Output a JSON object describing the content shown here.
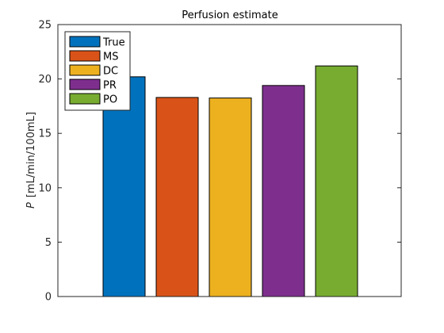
{
  "chart_data": {
    "type": "bar",
    "title": "Perfusion estimate",
    "xlabel": "",
    "ylabel_symbol": "P",
    "ylabel_units": "[mL/min/100mL]",
    "ylim": [
      0,
      25
    ],
    "yticks": [
      0,
      5,
      10,
      15,
      20,
      25
    ],
    "grid": false,
    "legend_location": "top-left",
    "series": [
      {
        "name": "True",
        "values": [
          20.2
        ],
        "color": "#0072BD"
      },
      {
        "name": "MS",
        "values": [
          18.3
        ],
        "color": "#D95319"
      },
      {
        "name": "DC",
        "values": [
          18.25
        ],
        "color": "#EDB120"
      },
      {
        "name": "PR",
        "values": [
          19.4
        ],
        "color": "#7E2F8E"
      },
      {
        "name": "PO",
        "values": [
          21.2
        ],
        "color": "#77AC30"
      }
    ]
  }
}
